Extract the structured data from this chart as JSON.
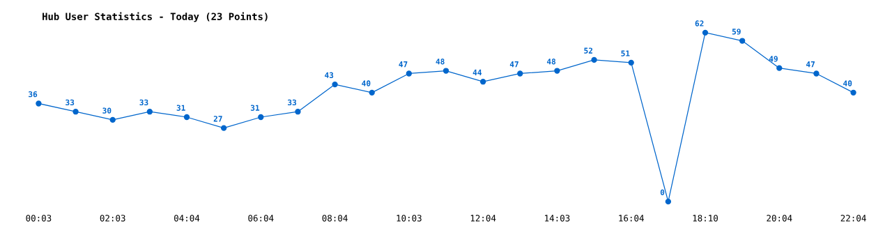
{
  "chart_data": {
    "type": "line",
    "title": "Hub User Statistics - Today (23 Points)",
    "categories": [
      "00:03",
      null,
      "02:03",
      null,
      "04:04",
      null,
      "06:04",
      null,
      "08:04",
      null,
      "10:03",
      null,
      "12:04",
      null,
      "14:03",
      null,
      "16:04",
      null,
      "18:10",
      null,
      "20:04",
      null,
      "22:04"
    ],
    "series": [
      {
        "color": "#0066cc",
        "values": [
          36,
          33,
          30,
          33,
          31,
          27,
          31,
          33,
          43,
          40,
          47,
          48,
          44,
          47,
          48,
          52,
          51,
          0,
          62,
          59,
          49,
          47,
          40
        ]
      }
    ],
    "data_labels": true,
    "marker": "circle",
    "line_style": "solid",
    "grid": false,
    "tick_labels": "x"
  }
}
